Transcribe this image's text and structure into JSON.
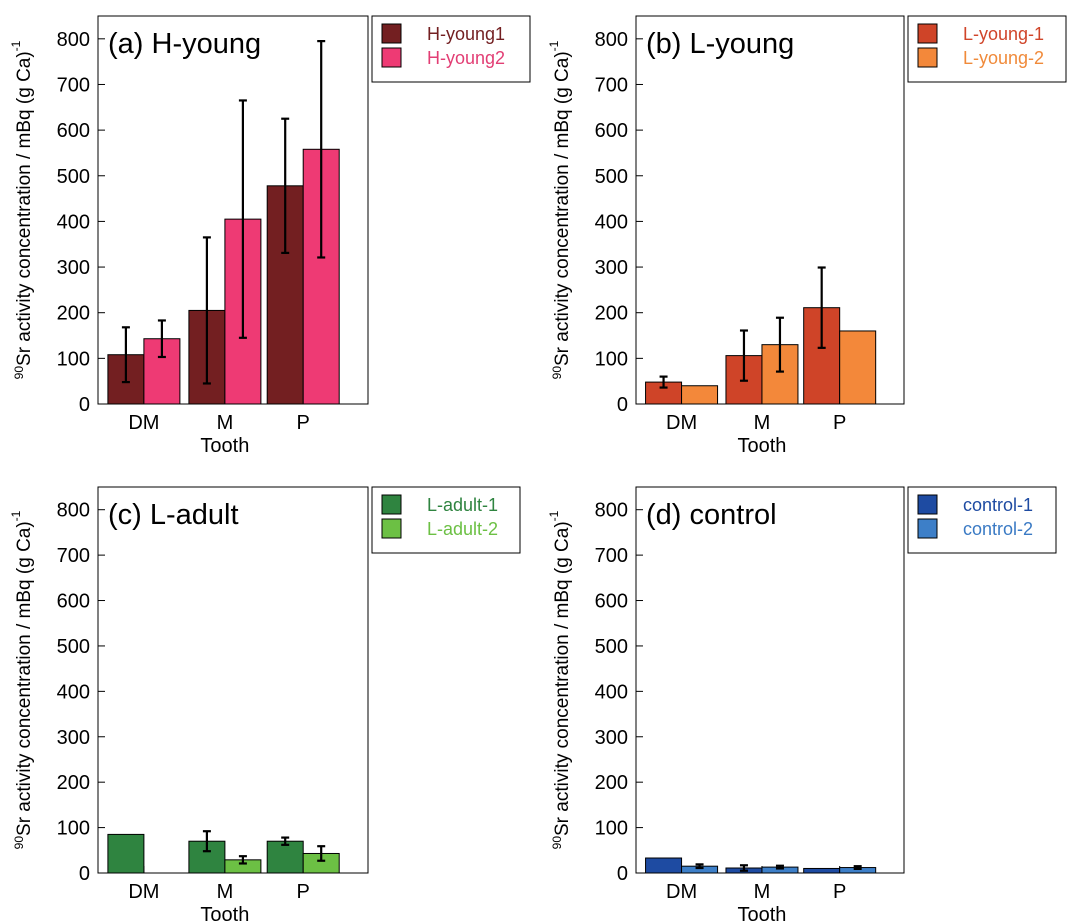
{
  "chart_data": [
    {
      "type": "bar",
      "title": "(a) H-young",
      "xlabel": "Tooth",
      "ylabel_prefix": "90",
      "ylabel": "Sr activity concentration / mBq (g Ca)",
      "ylabel_suffix": "-1",
      "categories": [
        "DM",
        "M",
        "P"
      ],
      "ylim": [
        0,
        850
      ],
      "yticks": [
        0,
        100,
        200,
        300,
        400,
        500,
        600,
        700,
        800
      ],
      "legend_position": "outside-top-right",
      "series": [
        {
          "name": "H-young1",
          "color": "#731f21",
          "label_color": "#731f21",
          "values": [
            108,
            205,
            478
          ],
          "errors": [
            60,
            160,
            147
          ]
        },
        {
          "name": "H-young2",
          "color": "#ee3a74",
          "label_color": "#e23e74",
          "values": [
            143,
            405,
            558
          ],
          "errors": [
            40,
            260,
            237
          ]
        }
      ]
    },
    {
      "type": "bar",
      "title": "(b) L-young",
      "xlabel": "Tooth",
      "ylabel_prefix": "90",
      "ylabel": "Sr activity concentration / mBq (g Ca)",
      "ylabel_suffix": "-1",
      "categories": [
        "DM",
        "M",
        "P"
      ],
      "ylim": [
        0,
        850
      ],
      "yticks": [
        0,
        100,
        200,
        300,
        400,
        500,
        600,
        700,
        800
      ],
      "legend_position": "outside-top-right",
      "series": [
        {
          "name": "L-young-1",
          "color": "#cf4428",
          "label_color": "#d0452a",
          "values": [
            48,
            106,
            211
          ],
          "errors": [
            12,
            55,
            88
          ]
        },
        {
          "name": "L-young-2",
          "color": "#f3883a",
          "label_color": "#f08a3a",
          "values": [
            40,
            130,
            160
          ],
          "errors": [
            0,
            59,
            0
          ]
        }
      ]
    },
    {
      "type": "bar",
      "title": "(c) L-adult",
      "xlabel": "Tooth",
      "ylabel_prefix": "90",
      "ylabel": "Sr activity concentration / mBq (g Ca)",
      "ylabel_suffix": "-1",
      "categories": [
        "DM",
        "M",
        "P"
      ],
      "ylim": [
        0,
        850
      ],
      "yticks": [
        0,
        100,
        200,
        300,
        400,
        500,
        600,
        700,
        800
      ],
      "legend_position": "outside-top-right",
      "series": [
        {
          "name": "L-adult-1",
          "color": "#2f8440",
          "label_color": "#2f8440",
          "values": [
            85,
            70,
            70
          ],
          "errors": [
            0,
            22,
            8
          ]
        },
        {
          "name": "L-adult-2",
          "color": "#6cc044",
          "label_color": "#6cc044",
          "values": [
            null,
            29,
            43
          ],
          "errors": [
            0,
            8,
            16
          ]
        }
      ]
    },
    {
      "type": "bar",
      "title": "(d) control",
      "xlabel": "Tooth",
      "ylabel_prefix": "90",
      "ylabel": "Sr activity concentration / mBq (g Ca)",
      "ylabel_suffix": "-1",
      "categories": [
        "DM",
        "M",
        "P"
      ],
      "ylim": [
        0,
        850
      ],
      "yticks": [
        0,
        100,
        200,
        300,
        400,
        500,
        600,
        700,
        800
      ],
      "legend_position": "outside-top-right",
      "series": [
        {
          "name": "control-1",
          "color": "#1e4ba2",
          "label_color": "#1e4ba2",
          "values": [
            33,
            11,
            10
          ],
          "errors": [
            0,
            6,
            0
          ]
        },
        {
          "name": "control-2",
          "color": "#3d7fc8",
          "label_color": "#3a7ac4",
          "values": [
            15,
            13,
            12
          ],
          "errors": [
            4,
            3,
            3
          ]
        }
      ]
    }
  ]
}
